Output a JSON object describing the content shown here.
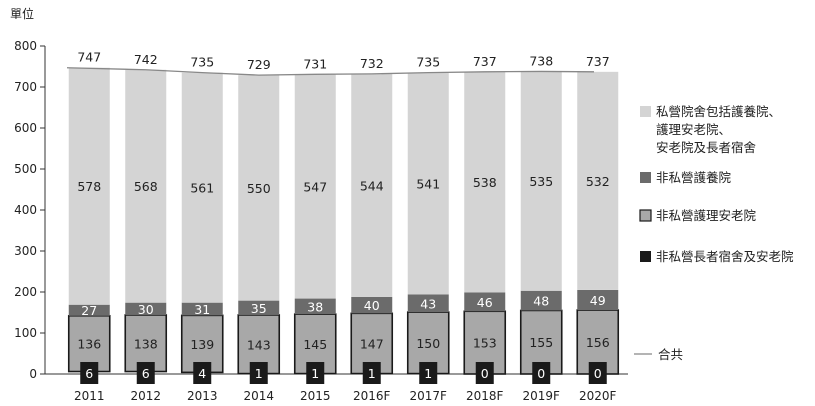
{
  "chart_data": {
    "type": "bar",
    "stacked": true,
    "unit_label": "單位",
    "categories": [
      "2011",
      "2012",
      "2013",
      "2014",
      "2015",
      "2016F",
      "2017F",
      "2018F",
      "2019F",
      "2020F"
    ],
    "series": [
      {
        "name": "非私營長者宿舍及安老院",
        "values": [
          6,
          6,
          4,
          1,
          1,
          1,
          1,
          0,
          0,
          0
        ],
        "color": "#1a1a1a"
      },
      {
        "name": "非私營護理安老院",
        "values": [
          136,
          138,
          139,
          143,
          145,
          147,
          150,
          153,
          155,
          156
        ],
        "color": "#a8a8a8"
      },
      {
        "name": "非私營護養院",
        "values": [
          27,
          30,
          31,
          35,
          38,
          40,
          43,
          46,
          48,
          49
        ],
        "color": "#6b6b6b"
      },
      {
        "name": "私營院舍包括護養院、\n護理安老院、\n安老院及長者宿舍",
        "values": [
          578,
          568,
          561,
          550,
          547,
          544,
          541,
          538,
          535,
          532
        ],
        "color": "#d4d4d4"
      }
    ],
    "total_series": {
      "name": "合共",
      "values": [
        747,
        742,
        735,
        729,
        731,
        732,
        735,
        737,
        738,
        737
      ],
      "color": "#888888"
    },
    "ylim": [
      0,
      800
    ],
    "yticks": [
      0,
      100,
      200,
      300,
      400,
      500,
      600,
      700,
      800
    ],
    "legend_position": "right"
  }
}
